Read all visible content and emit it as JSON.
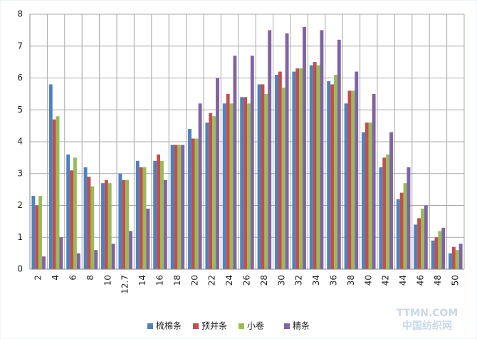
{
  "chart_data": {
    "type": "bar",
    "categories": [
      "2",
      "4",
      "6",
      "8",
      "10",
      "12.7",
      "14",
      "16",
      "18",
      "20",
      "22",
      "24",
      "26",
      "28",
      "30",
      "32",
      "34",
      "36",
      "38",
      "40",
      "42",
      "44",
      "46",
      "48",
      "50"
    ],
    "series": [
      {
        "name": "梳棉条",
        "color": "#4f81bd",
        "values": [
          2.3,
          5.8,
          3.6,
          3.2,
          2.7,
          3.0,
          3.4,
          3.4,
          3.9,
          4.4,
          4.6,
          5.2,
          5.4,
          5.8,
          6.1,
          6.2,
          6.4,
          5.9,
          5.2,
          4.3,
          3.2,
          2.2,
          1.4,
          0.9,
          0.5
        ]
      },
      {
        "name": "预并条",
        "color": "#c0504d",
        "values": [
          2.0,
          4.7,
          3.1,
          2.9,
          2.8,
          2.8,
          3.2,
          3.6,
          3.9,
          4.1,
          4.9,
          5.5,
          5.4,
          5.8,
          6.2,
          6.3,
          6.5,
          5.8,
          5.6,
          4.6,
          3.5,
          2.4,
          1.6,
          1.0,
          0.7
        ]
      },
      {
        "name": "小卷",
        "color": "#9bbb59",
        "values": [
          2.3,
          4.8,
          3.5,
          2.6,
          2.7,
          2.8,
          3.2,
          3.4,
          3.9,
          4.1,
          4.8,
          5.2,
          5.2,
          5.5,
          5.7,
          6.3,
          6.4,
          6.1,
          5.6,
          4.6,
          3.6,
          2.7,
          1.9,
          1.2,
          0.6
        ]
      },
      {
        "name": "精条",
        "color": "#8064a2",
        "values": [
          0.4,
          1.0,
          0.5,
          0.6,
          0.8,
          1.2,
          1.9,
          2.8,
          3.9,
          5.2,
          6.0,
          6.7,
          6.7,
          7.5,
          7.4,
          7.6,
          7.5,
          7.2,
          6.2,
          5.5,
          4.3,
          3.2,
          2.0,
          1.3,
          0.8
        ]
      }
    ],
    "ylim": [
      0,
      8
    ],
    "yticks": [
      0,
      1,
      2,
      3,
      4,
      5,
      6,
      7,
      8
    ],
    "grid": true,
    "legend": "bottom",
    "watermark": [
      "TTMN.COM",
      "中国纺织网"
    ]
  }
}
